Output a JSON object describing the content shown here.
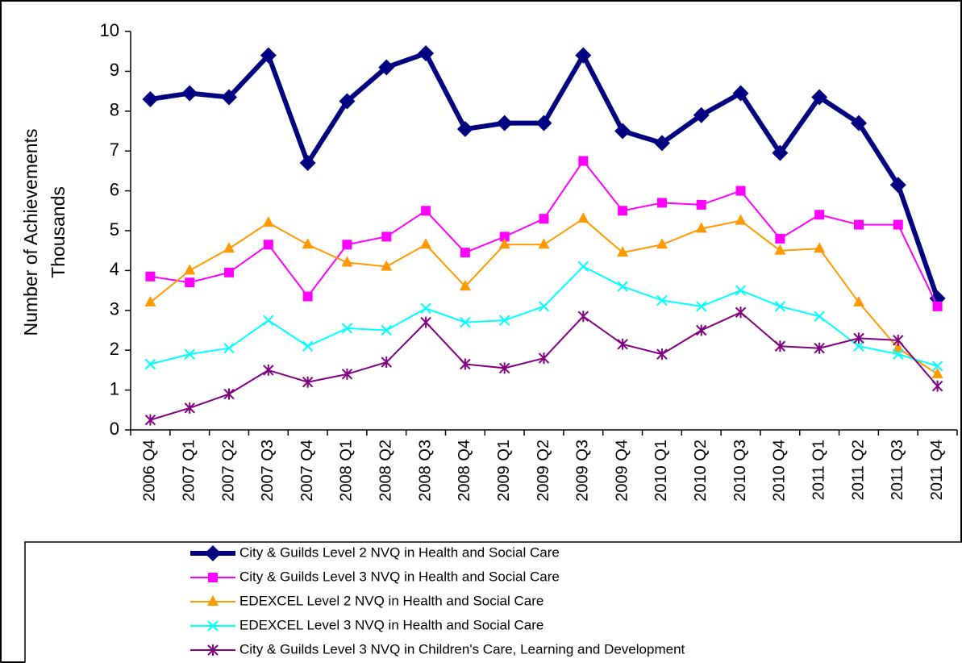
{
  "chart_data": {
    "type": "line",
    "ylabel": "Number of Achievements",
    "ylabel2": "Thousands",
    "categories": [
      "2006 Q4",
      "2007 Q1",
      "2007 Q2",
      "2007 Q3",
      "2007 Q4",
      "2008 Q1",
      "2008 Q2",
      "2008 Q3",
      "2008 Q4",
      "2009 Q1",
      "2009 Q2",
      "2009 Q3",
      "2009 Q4",
      "2010 Q1",
      "2010 Q2",
      "2010 Q3",
      "2010 Q4",
      "2011 Q1",
      "2011 Q2",
      "2011 Q3",
      "2011 Q4"
    ],
    "ylim": [
      0,
      10
    ],
    "yticks": [
      0,
      1,
      2,
      3,
      4,
      5,
      6,
      7,
      8,
      9,
      10
    ],
    "grid": false,
    "series": [
      {
        "name": "City & Guilds Level 2 NVQ in Health and Social Care",
        "color": "#000080",
        "marker": "diamond",
        "width": 6,
        "values": [
          8.3,
          8.45,
          8.35,
          9.4,
          6.7,
          8.25,
          9.1,
          9.45,
          7.55,
          7.7,
          7.7,
          9.4,
          7.5,
          7.2,
          7.9,
          8.45,
          6.95,
          8.35,
          7.7,
          6.15,
          3.3
        ]
      },
      {
        "name": "City & Guilds Level 3 NVQ in Health and Social Care",
        "color": "#ff00ff",
        "marker": "square",
        "width": 2,
        "values": [
          3.85,
          3.7,
          3.95,
          4.65,
          3.35,
          4.65,
          4.85,
          5.5,
          4.45,
          4.85,
          5.3,
          6.75,
          5.5,
          5.7,
          5.65,
          6.0,
          4.8,
          5.4,
          5.15,
          5.15,
          3.1
        ]
      },
      {
        "name": "EDEXCEL Level 2 NVQ in Health and Social Care",
        "color": "#ff9900",
        "marker": "triangle",
        "width": 2,
        "values": [
          3.2,
          4.0,
          4.55,
          5.2,
          4.65,
          4.2,
          4.1,
          4.65,
          3.6,
          4.65,
          4.65,
          5.3,
          4.45,
          4.65,
          5.05,
          5.25,
          4.5,
          4.55,
          3.2,
          2.05,
          1.4
        ]
      },
      {
        "name": "EDEXCEL Level 3 NVQ in Health and Social Care",
        "color": "#00ffff",
        "marker": "x",
        "width": 2,
        "values": [
          1.65,
          1.9,
          2.05,
          2.75,
          2.1,
          2.55,
          2.5,
          3.05,
          2.7,
          2.75,
          3.1,
          4.1,
          3.6,
          3.25,
          3.1,
          3.5,
          3.1,
          2.85,
          2.1,
          1.9,
          1.6
        ]
      },
      {
        "name": "City & Guilds Level 3 NVQ in Children's Care, Learning and Development",
        "color": "#800080",
        "marker": "star",
        "width": 2,
        "values": [
          0.25,
          0.55,
          0.9,
          1.5,
          1.2,
          1.4,
          1.7,
          2.7,
          1.65,
          1.55,
          1.8,
          2.85,
          2.15,
          1.9,
          2.5,
          2.95,
          2.1,
          2.05,
          2.3,
          2.25,
          1.1
        ]
      }
    ]
  }
}
